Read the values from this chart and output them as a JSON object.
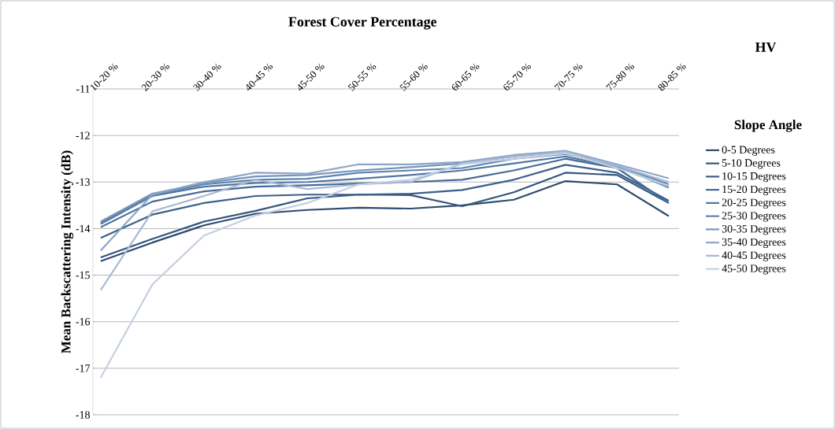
{
  "chart_data": {
    "type": "line",
    "xlabel": "Forest Cover Percentage",
    "ylabel": "Mean Backscattering Intensity (dB)",
    "legend_title": "Slope Angle",
    "annotations": [
      "HV"
    ],
    "categories": [
      "10-20 %",
      "20-30 %",
      "30-40 %",
      "40-45 %",
      "45-50 %",
      "50-55 %",
      "55-60 %",
      "60-65 %",
      "65-70 %",
      "70-75 %",
      "75-80 %",
      "80-85 %"
    ],
    "ylim": [
      -18,
      -11
    ],
    "yticks": [
      -18,
      -17,
      -16,
      -15,
      -14,
      -13,
      -12,
      -11
    ],
    "grid": "y",
    "legend": "right",
    "marker": "none",
    "line_style": "solid",
    "series": [
      {
        "name": "0-5 Degrees",
        "color": "#2d4a6e",
        "values": [
          -14.7,
          -14.3,
          -13.93,
          -13.68,
          -13.6,
          -13.55,
          -13.57,
          -13.5,
          -13.38,
          -12.98,
          -13.05,
          -13.73
        ]
      },
      {
        "name": "5-10 Degrees",
        "color": "#33557d",
        "values": [
          -14.62,
          -14.22,
          -13.85,
          -13.62,
          -13.35,
          -13.27,
          -13.28,
          -13.52,
          -13.22,
          -12.8,
          -12.85,
          -13.45
        ]
      },
      {
        "name": "10-15 Degrees",
        "color": "#3a5f8a",
        "values": [
          -14.2,
          -13.7,
          -13.45,
          -13.3,
          -13.27,
          -13.27,
          -13.25,
          -13.17,
          -12.95,
          -12.63,
          -12.8,
          -13.4
        ]
      },
      {
        "name": "15-20 Degrees",
        "color": "#446a96",
        "values": [
          -13.97,
          -13.42,
          -13.2,
          -13.1,
          -13.07,
          -13.03,
          -13.0,
          -12.95,
          -12.75,
          -12.5,
          -12.7,
          -13.45
        ]
      },
      {
        "name": "20-25 Degrees",
        "color": "#5076a2",
        "values": [
          -13.9,
          -13.3,
          -13.1,
          -13.02,
          -13.0,
          -12.93,
          -12.85,
          -12.75,
          -12.6,
          -12.45,
          -12.68,
          -13.1
        ]
      },
      {
        "name": "25-30 Degrees",
        "color": "#5f83ad",
        "values": [
          -13.88,
          -13.28,
          -13.05,
          -12.95,
          -12.93,
          -12.8,
          -12.75,
          -12.7,
          -12.5,
          -12.4,
          -12.65,
          -13.05
        ]
      },
      {
        "name": "30-35 Degrees",
        "color": "#7594bb",
        "values": [
          -13.85,
          -13.25,
          -13.02,
          -12.88,
          -12.85,
          -12.75,
          -12.68,
          -12.6,
          -12.45,
          -12.35,
          -12.65,
          -13.12
        ]
      },
      {
        "name": "35-40 Degrees",
        "color": "#8ca5c7",
        "values": [
          -14.47,
          -13.27,
          -13.0,
          -12.8,
          -12.82,
          -12.62,
          -12.62,
          -12.57,
          -12.42,
          -12.33,
          -12.62,
          -12.92
        ]
      },
      {
        "name": "40-45 Degrees",
        "color": "#a6b8d4",
        "values": [
          -15.32,
          -13.63,
          -13.3,
          -12.95,
          -13.15,
          -13.05,
          -13.0,
          -12.6,
          -12.45,
          -12.35,
          -12.65,
          -13.0
        ]
      },
      {
        "name": "45-50 Degrees",
        "color": "#c5d0e2",
        "values": [
          -17.2,
          -15.2,
          -14.15,
          -13.72,
          -13.45,
          -13.05,
          -12.95,
          -12.62,
          -12.5,
          -12.38,
          -12.7,
          -13.08
        ]
      }
    ]
  }
}
